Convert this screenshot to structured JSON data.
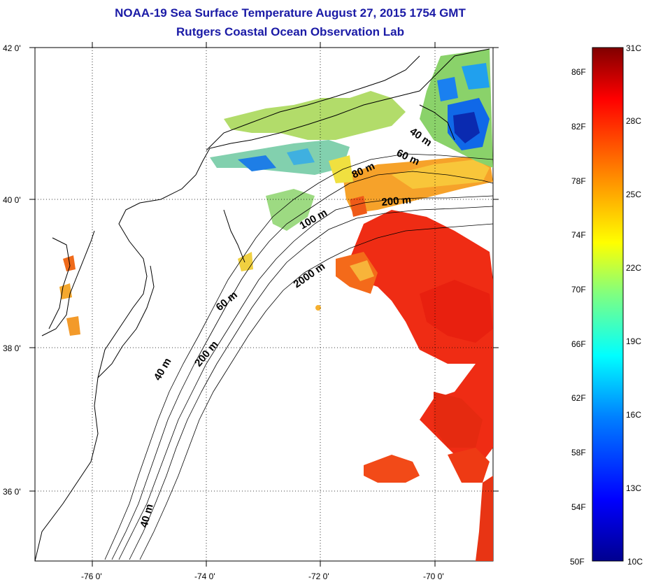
{
  "title": {
    "line1": "NOAA-19 Sea Surface Temperature August 27, 2015 1754 GMT",
    "line2": "Rutgers Coastal Ocean Observation Lab"
  },
  "map": {
    "lat_labels": [
      "42 0'",
      "40 0'",
      "38 0'",
      "36 0'"
    ],
    "lon_labels": [
      "-76 0'",
      "-74 0'",
      "-72 0'",
      "-70 0'"
    ],
    "contour_labels": [
      "40 m",
      "60 m",
      "80 m",
      "200 m",
      "100 m",
      "2000 m",
      "60 m",
      "40 m",
      "200 m",
      "40 m"
    ]
  },
  "colorbar": {
    "fahrenheit_labels": [
      "86F",
      "82F",
      "78F",
      "74F",
      "70F",
      "66F",
      "62F",
      "58F",
      "54F",
      "50F"
    ],
    "celsius_labels": [
      "31C",
      "28C",
      "25C",
      "22C",
      "19C",
      "16C",
      "13C",
      "10C"
    ],
    "range_f": [
      50,
      88
    ],
    "range_c": [
      10,
      31
    ],
    "colors": [
      "#00008f",
      "#0000ff",
      "#0080ff",
      "#00ffff",
      "#80ff80",
      "#ffff00",
      "#ff8000",
      "#ff0000",
      "#800000"
    ]
  }
}
